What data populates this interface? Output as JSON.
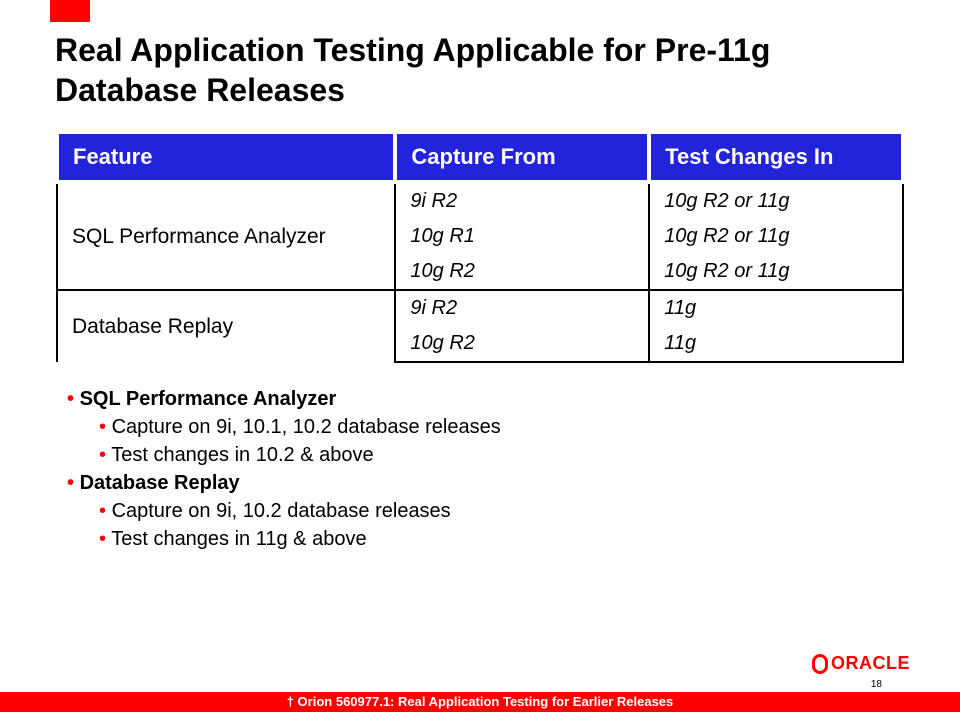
{
  "accent_color": "#ff0000",
  "header_bg": "#2323dc",
  "title": "Real Application Testing Applicable for Pre-11g Database Releases",
  "table": {
    "columns": [
      "Feature",
      "Capture From",
      "Test Changes In"
    ],
    "groups": [
      {
        "feature": "SQL Performance Analyzer",
        "rows": [
          {
            "capture": "9i R2",
            "test": "10g R2 or 11g"
          },
          {
            "capture": "10g R1",
            "test": "10g R2 or 11g"
          },
          {
            "capture": "10g R2",
            "test": "10g R2 or 11g"
          }
        ]
      },
      {
        "feature": "Database Replay",
        "rows": [
          {
            "capture": "9i R2",
            "test": "11g"
          },
          {
            "capture": "10g R2",
            "test": "11g"
          }
        ]
      }
    ]
  },
  "bullets": {
    "spa": {
      "title": "SQL Performance Analyzer",
      "items": [
        "Capture on 9i, 10.1, 10.2 database releases",
        "Test changes in 10.2 & above"
      ]
    },
    "dbr": {
      "title": "Database Replay",
      "items": [
        "Capture on 9i, 10.2 database releases",
        "Test changes in 11g & above"
      ]
    }
  },
  "logo_text": "ORACLE",
  "footnote": "† Orion 560977.1: Real Application Testing for Earlier Releases",
  "page_number": "18"
}
